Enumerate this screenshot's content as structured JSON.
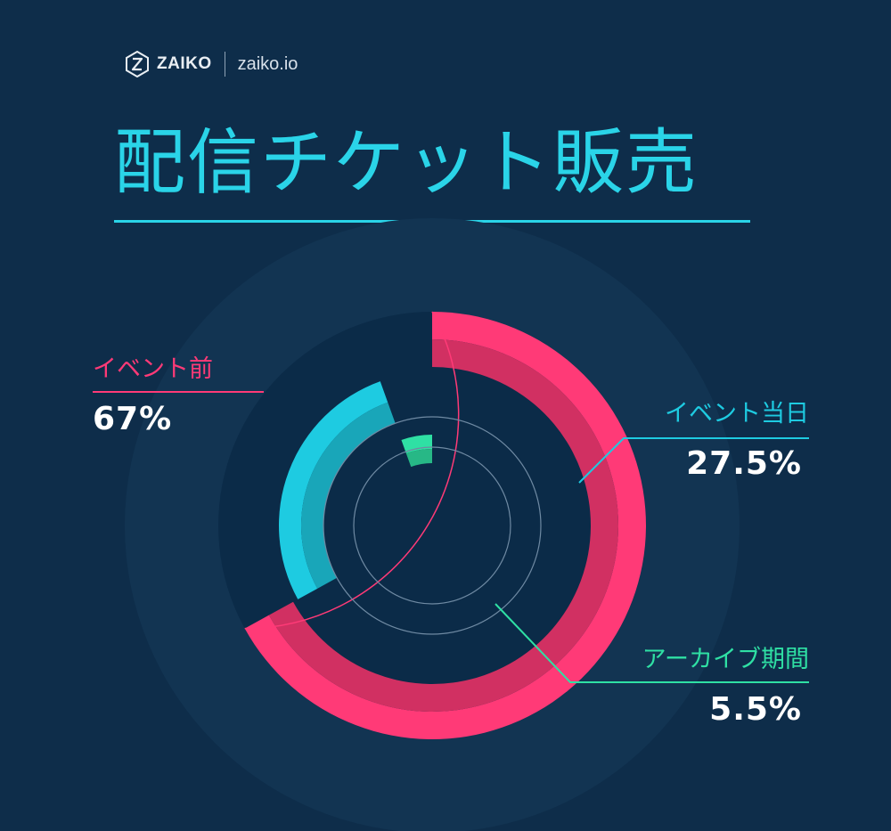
{
  "brand": {
    "name": "ZAIKO",
    "url": "zaiko.io"
  },
  "title": "配信チケット販売",
  "colors": {
    "background": "#0e2d4a",
    "accent": "#2ad4e8",
    "pink": "#ff3a77",
    "cyan": "#1ecbe1",
    "green": "#2fe0a4"
  },
  "chart_data": {
    "type": "pie",
    "style": "nested-donut",
    "labels": [
      "イベント前",
      "イベント当日",
      "アーカイブ期間"
    ],
    "value_labels": [
      "67%",
      "27.5%",
      "5.5%"
    ],
    "values": [
      67,
      27.5,
      5.5
    ],
    "colors": [
      "#ff3a77",
      "#1ecbe1",
      "#2fe0a4"
    ]
  }
}
